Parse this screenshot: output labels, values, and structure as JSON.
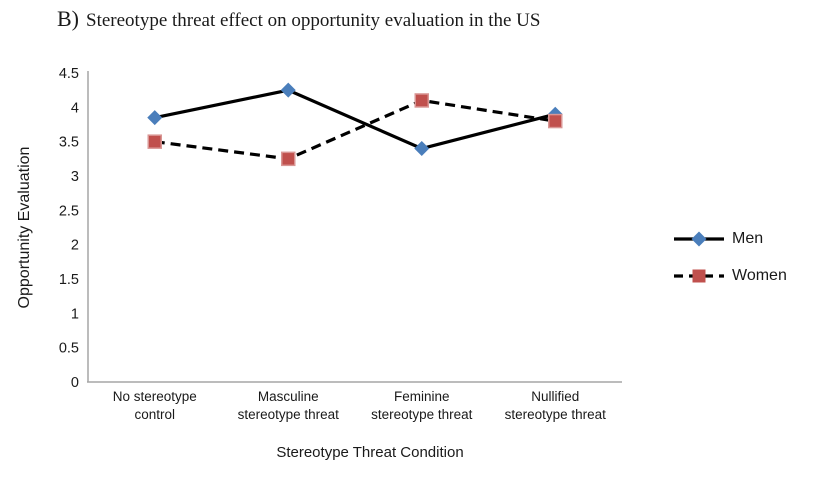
{
  "title": {
    "prefix": "B)",
    "text": "Stereotype threat effect on opportunity evaluation in the US"
  },
  "chart_data": {
    "type": "line",
    "title": "B) Stereotype threat effect on opportunity evaluation in the US",
    "categories": [
      "No stereotype control",
      "Masculine stereotype threat",
      "Feminine stereotype threat",
      "Nullified stereotype threat"
    ],
    "categories_lines": [
      [
        "No stereotype",
        "control"
      ],
      [
        "Masculine",
        "stereotype threat"
      ],
      [
        "Feminine",
        "stereotype threat"
      ],
      [
        "Nullified",
        "stereotype threat"
      ]
    ],
    "series": [
      {
        "name": "Men",
        "values": [
          3.85,
          4.25,
          3.4,
          3.9
        ],
        "line_style": "solid",
        "line_color": "#000000",
        "marker": "diamond",
        "marker_color": "#4a7ebb"
      },
      {
        "name": "Women",
        "values": [
          3.5,
          3.25,
          4.1,
          3.8
        ],
        "line_style": "dashed",
        "line_color": "#000000",
        "marker": "square",
        "marker_color": "#c0504d",
        "marker_stroke": "#d99694"
      }
    ],
    "xlabel": "Stereotype Threat Condition",
    "ylabel": "Opportunity Evaluation",
    "ylim": [
      0,
      4.5
    ],
    "ytick_step": 0.5,
    "yticks": [
      "0",
      "0.5",
      "1",
      "1.5",
      "2",
      "2.5",
      "3",
      "3.5",
      "4",
      "4.5"
    ],
    "grid": false,
    "legend_position": "right",
    "axis_color": "#a6a6a6"
  }
}
